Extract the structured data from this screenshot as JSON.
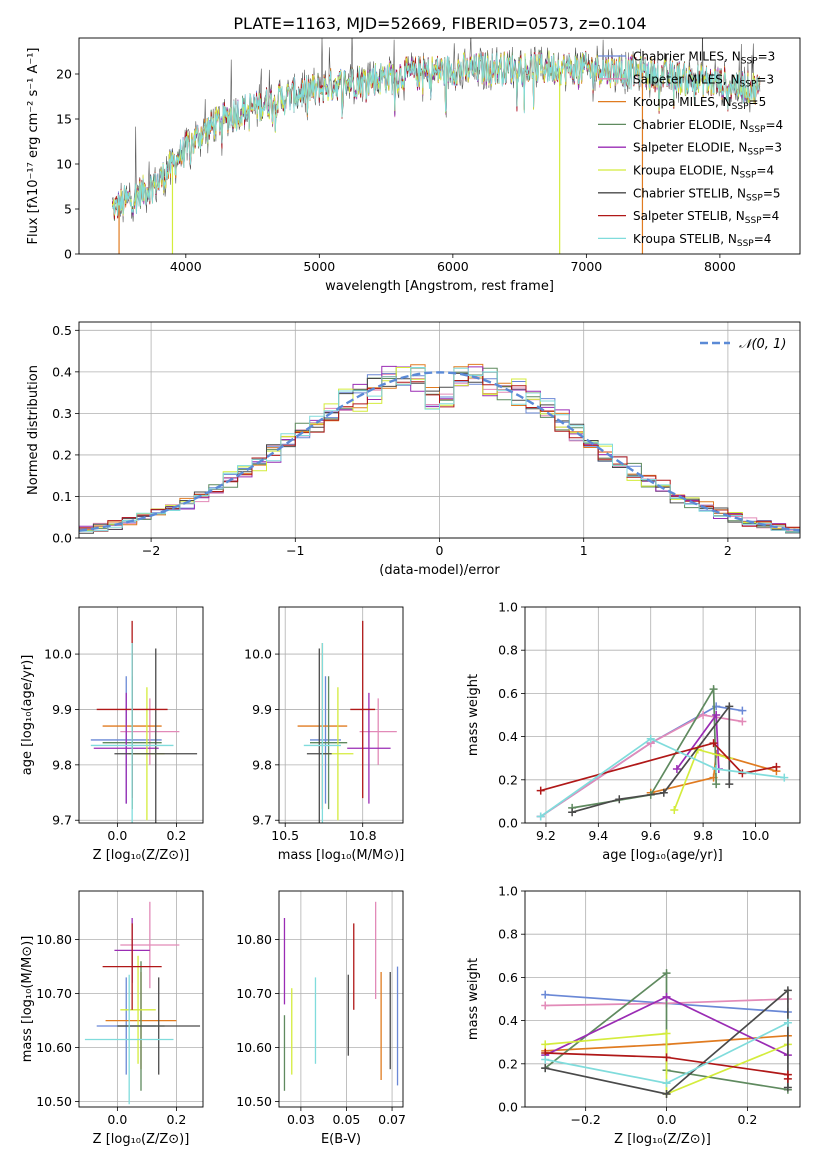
{
  "title": "PLATE=1163, MJD=52669, FIBERID=0573, z=0.104",
  "colors": {
    "Chabrier MILES": "#6a88d6",
    "Salpeter MILES": "#e28ab8",
    "Kroupa MILES": "#e07b20",
    "Chabrier ELODIE": "#5f8a5f",
    "Salpeter ELODIE": "#9a2cb4",
    "Kroupa ELODIE": "#d4ec3c",
    "Chabrier STELIB": "#4a4a4a",
    "Salpeter STELIB": "#b01818",
    "Kroupa STELIB": "#80dcdc"
  },
  "chart_data": [
    {
      "id": "spectrum",
      "type": "line",
      "xlabel": "wavelength [Angstrom, rest frame]",
      "ylabel": "Flux [fλ10⁻¹⁷ erg cm⁻² s⁻¹ A⁻¹]",
      "xlim": [
        3200,
        8600
      ],
      "ylim": [
        0,
        24
      ],
      "xticks": [
        4000,
        5000,
        6000,
        7000,
        8000
      ],
      "yticks": [
        0,
        5,
        10,
        15,
        20
      ],
      "grid": false,
      "legend_position": "upper-right",
      "continuum": {
        "x": [
          3450,
          3600,
          3800,
          3950,
          4100,
          4300,
          4500,
          4700,
          4900,
          5100,
          5300,
          5500,
          5700,
          5900,
          6100,
          6300,
          6500,
          6700,
          6900,
          7100,
          7300,
          7500,
          7700,
          7900,
          8100,
          8300
        ],
        "y": [
          5.0,
          6.2,
          8.0,
          10.8,
          13.2,
          15.2,
          16.3,
          17.2,
          18.0,
          18.8,
          19.2,
          19.7,
          20.0,
          20.3,
          20.5,
          20.6,
          20.7,
          20.7,
          20.6,
          20.5,
          20.3,
          20.0,
          19.6,
          19.2,
          18.8,
          18.3
        ]
      },
      "series": [
        {
          "name": "Chabrier MILES, N_SSP=3",
          "legend_label": "Chabrier MILES, N",
          "legend_sub": "SSP",
          "legend_tail": "=3"
        },
        {
          "name": "Salpeter MILES, N_SSP=3",
          "legend_label": "Salpeter MILES, N",
          "legend_sub": "SSP",
          "legend_tail": "=3"
        },
        {
          "name": "Kroupa MILES, N_SSP=5",
          "legend_label": "Kroupa MILES, N",
          "legend_sub": "SSP",
          "legend_tail": "=5"
        },
        {
          "name": "Chabrier ELODIE, N_SSP=4",
          "legend_label": "Chabrier ELODIE, N",
          "legend_sub": "SSP",
          "legend_tail": "=4"
        },
        {
          "name": "Salpeter ELODIE, N_SSP=3",
          "legend_label": "Salpeter ELODIE, N",
          "legend_sub": "SSP",
          "legend_tail": "=3"
        },
        {
          "name": "Kroupa ELODIE, N_SSP=4",
          "legend_label": "Kroupa ELODIE, N",
          "legend_sub": "SSP",
          "legend_tail": "=4"
        },
        {
          "name": "Chabrier STELIB, N_SSP=5",
          "legend_label": "Chabrier STELIB, N",
          "legend_sub": "SSP",
          "legend_tail": "=5"
        },
        {
          "name": "Salpeter STELIB, N_SSP=4",
          "legend_label": "Salpeter STELIB, N",
          "legend_sub": "SSP",
          "legend_tail": "=4"
        },
        {
          "name": "Kroupa STELIB, N_SSP=4",
          "legend_label": "Kroupa STELIB, N",
          "legend_sub": "SSP",
          "legend_tail": "=4"
        }
      ],
      "dropouts": [
        {
          "model": "Kroupa MILES",
          "x": 3500
        },
        {
          "model": "Kroupa ELODIE",
          "x": 3900
        },
        {
          "model": "Kroupa ELODIE",
          "x": 6800
        },
        {
          "model": "Kroupa MILES",
          "x": 7420
        }
      ]
    },
    {
      "id": "residuals",
      "type": "histogram",
      "xlabel": "(data-model)/error",
      "ylabel": "Normed distribution",
      "xlim": [
        -2.5,
        2.5
      ],
      "ylim": [
        0,
        0.52
      ],
      "xticks": [
        -2,
        -1,
        0,
        1,
        2
      ],
      "yticks": [
        0.0,
        0.1,
        0.2,
        0.3,
        0.4,
        0.5
      ],
      "grid": true,
      "legend_position": "upper-right",
      "reference_label": "𝒩(0, 1)",
      "bin_width": 0.1,
      "bin_start": -2.5
    },
    {
      "id": "age-vs-Z",
      "type": "errorbar",
      "xlabel": "Z [log₁₀(Z/Z⊙)]",
      "ylabel": "age  [log₁₀(age/yr)]",
      "xlim": [
        -0.13,
        0.29
      ],
      "ylim": [
        9.695,
        10.085
      ],
      "xticks": [
        0.0,
        0.2
      ],
      "yticks": [
        9.7,
        9.8,
        9.9,
        10.0
      ],
      "grid": true,
      "points": [
        {
          "model": "Chabrier MILES",
          "x": 0.03,
          "xerr": 0.12,
          "y": 9.845,
          "yerr": 0.115
        },
        {
          "model": "Salpeter MILES",
          "x": 0.11,
          "xerr": 0.1,
          "y": 9.86,
          "yerr": 0.06
        },
        {
          "model": "Kroupa MILES",
          "x": 0.05,
          "xerr": 0.1,
          "y": 9.87,
          "yerr": 0.15
        },
        {
          "model": "Chabrier ELODIE",
          "x": 0.05,
          "xerr": 0.1,
          "y": 9.84,
          "yerr": 0.12
        },
        {
          "model": "Salpeter ELODIE",
          "x": 0.03,
          "xerr": 0.11,
          "y": 9.83,
          "yerr": 0.1
        },
        {
          "model": "Kroupa ELODIE",
          "x": 0.1,
          "xerr": 0.06,
          "y": 9.82,
          "yerr": 0.12
        },
        {
          "model": "Chabrier STELIB",
          "x": 0.13,
          "xerr": 0.14,
          "y": 9.82,
          "yerr": 0.19
        },
        {
          "model": "Salpeter STELIB",
          "x": 0.05,
          "xerr": 0.12,
          "y": 9.9,
          "yerr": 0.16
        },
        {
          "model": "Kroupa STELIB",
          "x": 0.05,
          "xerr": 0.14,
          "y": 9.835,
          "yerr": 0.185
        }
      ]
    },
    {
      "id": "age-vs-mass",
      "type": "errorbar",
      "xlabel": "mass [log₁₀(M/M⊙)]",
      "ylabel": "",
      "xlim": [
        10.48,
        10.88
      ],
      "ylim": [
        9.695,
        10.085
      ],
      "xticks": [
        10.5,
        10.75
      ],
      "yticks": [
        9.7,
        9.8,
        9.9,
        10.0
      ],
      "grid": true,
      "points": [
        {
          "model": "Chabrier MILES",
          "x": 10.63,
          "xerr": 0.05,
          "y": 9.845,
          "yerr": 0.115
        },
        {
          "model": "Salpeter MILES",
          "x": 10.8,
          "xerr": 0.06,
          "y": 9.86,
          "yerr": 0.06
        },
        {
          "model": "Kroupa MILES",
          "x": 10.62,
          "xerr": 0.08,
          "y": 9.87,
          "yerr": 0.15
        },
        {
          "model": "Chabrier ELODIE",
          "x": 10.64,
          "xerr": 0.06,
          "y": 9.84,
          "yerr": 0.12
        },
        {
          "model": "Salpeter ELODIE",
          "x": 10.77,
          "xerr": 0.07,
          "y": 9.83,
          "yerr": 0.1
        },
        {
          "model": "Kroupa ELODIE",
          "x": 10.67,
          "xerr": 0.05,
          "y": 9.82,
          "yerr": 0.12
        },
        {
          "model": "Chabrier STELIB",
          "x": 10.61,
          "xerr": 0.04,
          "y": 9.82,
          "yerr": 0.19
        },
        {
          "model": "Salpeter STELIB",
          "x": 10.75,
          "xerr": 0.04,
          "y": 9.9,
          "yerr": 0.16
        },
        {
          "model": "Kroupa STELIB",
          "x": 10.62,
          "xerr": 0.06,
          "y": 9.835,
          "yerr": 0.185
        }
      ]
    },
    {
      "id": "weight-vs-age",
      "type": "line",
      "xlabel": "age  [log₁₀(age/yr)]",
      "ylabel": "mass weight",
      "xlim": [
        9.12,
        10.17
      ],
      "ylim": [
        0,
        1.0
      ],
      "xticks": [
        9.2,
        9.4,
        9.6,
        9.8,
        10.0
      ],
      "yticks": [
        0.0,
        0.2,
        0.4,
        0.6,
        0.8,
        1.0
      ],
      "grid": true,
      "series": [
        {
          "model": "Chabrier MILES",
          "x": [
            9.18,
            9.6,
            9.85,
            9.95
          ],
          "y": [
            0.03,
            0.37,
            0.54,
            0.52
          ]
        },
        {
          "model": "Salpeter MILES",
          "x": [
            9.18,
            9.6,
            9.8,
            9.95
          ],
          "y": [
            0.03,
            0.37,
            0.5,
            0.47
          ]
        },
        {
          "model": "Kroupa MILES",
          "x": [
            9.6,
            9.84,
            9.85,
            10.08
          ],
          "y": [
            0.14,
            0.21,
            0.32,
            0.24
          ]
        },
        {
          "model": "Chabrier ELODIE",
          "x": [
            9.3,
            9.6,
            9.84,
            9.85
          ],
          "y": [
            0.07,
            0.13,
            0.62,
            0.18
          ]
        },
        {
          "model": "Salpeter ELODIE",
          "x": [
            9.7,
            9.85,
            9.86
          ],
          "y": [
            0.25,
            0.5,
            0.25
          ]
        },
        {
          "model": "Kroupa ELODIE",
          "x": [
            9.69,
            9.78,
            9.9
          ],
          "y": [
            0.06,
            0.34,
            0.3
          ]
        },
        {
          "model": "Chabrier STELIB",
          "x": [
            9.3,
            9.48,
            9.65,
            9.9,
            9.9
          ],
          "y": [
            0.05,
            0.11,
            0.14,
            0.54,
            0.18
          ]
        },
        {
          "model": "Salpeter STELIB",
          "x": [
            9.18,
            9.84,
            9.95,
            10.08
          ],
          "y": [
            0.15,
            0.37,
            0.23,
            0.26
          ]
        },
        {
          "model": "Kroupa STELIB",
          "x": [
            9.18,
            9.6,
            9.85,
            10.11
          ],
          "y": [
            0.03,
            0.39,
            0.25,
            0.21
          ]
        }
      ]
    },
    {
      "id": "mass-vs-Z",
      "type": "errorbar",
      "xlabel": "Z [log₁₀(Z/Z⊙)]",
      "ylabel": "mass [log₁₀(M/M⊙)]",
      "xlim": [
        -0.13,
        0.29
      ],
      "ylim": [
        10.49,
        10.89
      ],
      "xticks": [
        0.0,
        0.2
      ],
      "yticks": [
        10.5,
        10.6,
        10.7,
        10.8
      ],
      "grid": true,
      "points": [
        {
          "model": "Chabrier MILES",
          "x": 0.03,
          "xerr": 0.1,
          "y": 10.64,
          "yerr": 0.09
        },
        {
          "model": "Salpeter MILES",
          "x": 0.11,
          "xerr": 0.1,
          "y": 10.79,
          "yerr": 0.08
        },
        {
          "model": "Kroupa MILES",
          "x": 0.08,
          "xerr": 0.12,
          "y": 10.65,
          "yerr": 0.09
        },
        {
          "model": "Chabrier ELODIE",
          "x": 0.08,
          "xerr": 0.08,
          "y": 10.64,
          "yerr": 0.12
        },
        {
          "model": "Salpeter ELODIE",
          "x": 0.05,
          "xerr": 0.06,
          "y": 10.78,
          "yerr": 0.06
        },
        {
          "model": "Kroupa ELODIE",
          "x": 0.07,
          "xerr": 0.06,
          "y": 10.67,
          "yerr": 0.1
        },
        {
          "model": "Chabrier STELIB",
          "x": 0.14,
          "xerr": 0.14,
          "y": 10.64,
          "yerr": 0.09
        },
        {
          "model": "Salpeter STELIB",
          "x": 0.05,
          "xerr": 0.1,
          "y": 10.75,
          "yerr": 0.08
        },
        {
          "model": "Kroupa STELIB",
          "x": 0.04,
          "xerr": 0.15,
          "y": 10.615,
          "yerr": 0.12
        }
      ]
    },
    {
      "id": "mass-vs-EBV",
      "type": "errorbar",
      "xlabel": "E(B-V)",
      "ylabel": "",
      "xlim": [
        0.013,
        0.081
      ],
      "ylim": [
        10.49,
        10.89
      ],
      "xticks": [
        0.025,
        0.05,
        0.075
      ],
      "yticks": [
        10.5,
        10.6,
        10.7,
        10.8
      ],
      "grid": true,
      "points": [
        {
          "model": "Salpeter ELODIE",
          "x": 0.016,
          "y": 10.76,
          "yerr": 0.08
        },
        {
          "model": "Chabrier ELODIE",
          "x": 0.016,
          "y": 10.59,
          "yerr": 0.07
        },
        {
          "model": "Kroupa ELODIE",
          "x": 0.02,
          "y": 10.63,
          "yerr": 0.08
        },
        {
          "model": "Kroupa STELIB",
          "x": 0.033,
          "y": 10.65,
          "yerr": 0.08
        },
        {
          "model": "Chabrier STELIB",
          "x": 0.051,
          "y": 10.66,
          "yerr": 0.075
        },
        {
          "model": "Salpeter STELIB",
          "x": 0.054,
          "y": 10.75,
          "yerr": 0.08
        },
        {
          "model": "Salpeter MILES",
          "x": 0.066,
          "y": 10.78,
          "yerr": 0.09
        },
        {
          "model": "Kroupa MILES",
          "x": 0.069,
          "y": 10.64,
          "yerr": 0.1
        },
        {
          "model": "Chabrier STELIB",
          "x": 0.074,
          "y": 10.65,
          "yerr": 0.09
        },
        {
          "model": "Chabrier MILES",
          "x": 0.078,
          "y": 10.64,
          "yerr": 0.11
        }
      ]
    },
    {
      "id": "weight-vs-Z",
      "type": "line",
      "xlabel": "Z [log₁₀(Z/Z⊙)]",
      "ylabel": "mass weight",
      "xlim": [
        -0.35,
        0.33
      ],
      "ylim": [
        0,
        1.0
      ],
      "xticks": [
        -0.2,
        0.0,
        0.2
      ],
      "yticks": [
        0.0,
        0.2,
        0.4,
        0.6,
        0.8,
        1.0
      ],
      "grid": true,
      "series": [
        {
          "model": "Chabrier MILES",
          "x": [
            -0.3,
            0.0,
            0.3
          ],
          "y": [
            0.52,
            0.48,
            0.44
          ]
        },
        {
          "model": "Salpeter MILES",
          "x": [
            -0.3,
            0.0,
            0.3
          ],
          "y": [
            0.47,
            0.48,
            0.5
          ]
        },
        {
          "model": "Kroupa MILES",
          "x": [
            -0.3,
            0.0,
            0.3
          ],
          "y": [
            0.26,
            0.29,
            0.33
          ]
        },
        {
          "model": "Chabrier ELODIE",
          "x": [
            -0.3,
            0.0,
            0.0,
            0.3
          ],
          "y": [
            0.18,
            0.62,
            0.17,
            0.08
          ]
        },
        {
          "model": "Salpeter ELODIE",
          "x": [
            -0.3,
            0.0,
            0.3
          ],
          "y": [
            0.24,
            0.51,
            0.24
          ]
        },
        {
          "model": "Kroupa ELODIE",
          "x": [
            -0.3,
            0.0,
            0.0,
            0.3
          ],
          "y": [
            0.29,
            0.34,
            0.06,
            0.29
          ]
        },
        {
          "model": "Chabrier STELIB",
          "x": [
            -0.3,
            0.0,
            0.3,
            0.3
          ],
          "y": [
            0.18,
            0.06,
            0.54,
            0.09
          ]
        },
        {
          "model": "Salpeter STELIB",
          "x": [
            -0.3,
            0.0,
            0.3,
            0.3
          ],
          "y": [
            0.25,
            0.23,
            0.15,
            0.13
          ]
        },
        {
          "model": "Kroupa STELIB",
          "x": [
            -0.3,
            0.0,
            0.3
          ],
          "y": [
            0.22,
            0.11,
            0.39
          ]
        }
      ]
    }
  ]
}
